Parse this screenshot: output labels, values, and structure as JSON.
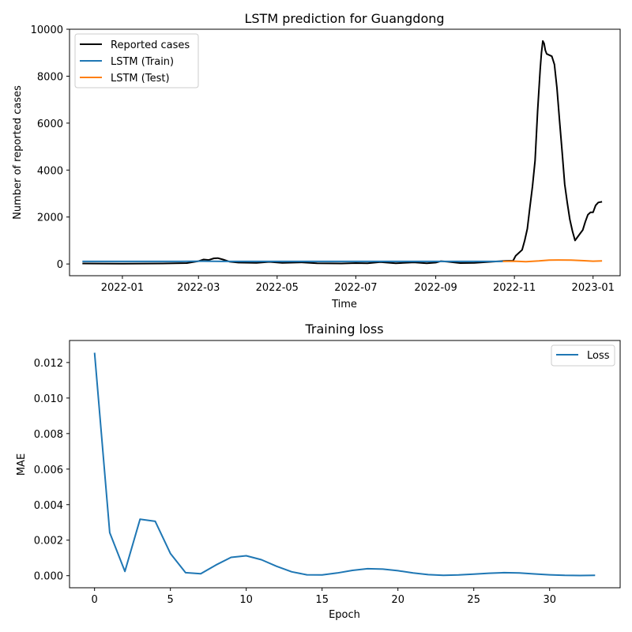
{
  "colors": {
    "reported": "#000000",
    "train": "#1f77b4",
    "test": "#ff7f0e",
    "loss": "#1f77b4"
  },
  "chart_data": [
    {
      "type": "line",
      "title": "LSTM prediction for Guangdong",
      "xlabel": "Time",
      "ylabel": "Number of reported cases",
      "x_range": [
        "2021-11-21",
        "2023-01-22"
      ],
      "ylim": [
        -500,
        10000
      ],
      "x_ticks": [
        "2022-01",
        "2022-03",
        "2022-05",
        "2022-07",
        "2022-09",
        "2022-11",
        "2023-01"
      ],
      "y_ticks": [
        "0",
        "2000",
        "4000",
        "6000",
        "8000",
        "10000"
      ],
      "legend_position": "upper-left",
      "grid": false,
      "series": [
        {
          "name": "Reported cases",
          "color_key": "reported",
          "points": [
            [
              "2021-12-01",
              20
            ],
            [
              "2022-01-01",
              15
            ],
            [
              "2022-02-01",
              20
            ],
            [
              "2022-02-20",
              40
            ],
            [
              "2022-03-01",
              120
            ],
            [
              "2022-03-05",
              190
            ],
            [
              "2022-03-09",
              170
            ],
            [
              "2022-03-13",
              240
            ],
            [
              "2022-03-16",
              250
            ],
            [
              "2022-03-20",
              190
            ],
            [
              "2022-03-25",
              100
            ],
            [
              "2022-04-01",
              60
            ],
            [
              "2022-04-15",
              50
            ],
            [
              "2022-04-25",
              90
            ],
            [
              "2022-05-05",
              50
            ],
            [
              "2022-05-20",
              70
            ],
            [
              "2022-06-01",
              30
            ],
            [
              "2022-06-20",
              20
            ],
            [
              "2022-07-01",
              40
            ],
            [
              "2022-07-10",
              30
            ],
            [
              "2022-07-20",
              80
            ],
            [
              "2022-08-01",
              30
            ],
            [
              "2022-08-15",
              70
            ],
            [
              "2022-08-25",
              30
            ],
            [
              "2022-09-01",
              60
            ],
            [
              "2022-09-05",
              120
            ],
            [
              "2022-09-10",
              100
            ],
            [
              "2022-09-20",
              40
            ],
            [
              "2022-10-01",
              50
            ],
            [
              "2022-10-15",
              100
            ],
            [
              "2022-10-25",
              130
            ],
            [
              "2022-10-31",
              140
            ],
            [
              "2022-11-02",
              350
            ],
            [
              "2022-11-05",
              500
            ],
            [
              "2022-11-07",
              600
            ],
            [
              "2022-11-09",
              1000
            ],
            [
              "2022-11-11",
              1500
            ],
            [
              "2022-11-13",
              2400
            ],
            [
              "2022-11-15",
              3300
            ],
            [
              "2022-11-17",
              4400
            ],
            [
              "2022-11-19",
              6500
            ],
            [
              "2022-11-21",
              8300
            ],
            [
              "2022-11-22",
              9000
            ],
            [
              "2022-11-23",
              9500
            ],
            [
              "2022-11-24",
              9400
            ],
            [
              "2022-11-25",
              9100
            ],
            [
              "2022-11-26",
              8950
            ],
            [
              "2022-11-28",
              8900
            ],
            [
              "2022-11-30",
              8850
            ],
            [
              "2022-12-02",
              8500
            ],
            [
              "2022-12-04",
              7500
            ],
            [
              "2022-12-06",
              6100
            ],
            [
              "2022-12-08",
              4800
            ],
            [
              "2022-12-10",
              3400
            ],
            [
              "2022-12-12",
              2600
            ],
            [
              "2022-12-14",
              1900
            ],
            [
              "2022-12-16",
              1400
            ],
            [
              "2022-12-18",
              1000
            ],
            [
              "2022-12-20",
              1150
            ],
            [
              "2022-12-22",
              1300
            ],
            [
              "2022-12-24",
              1450
            ],
            [
              "2022-12-26",
              1800
            ],
            [
              "2022-12-28",
              2100
            ],
            [
              "2022-12-30",
              2200
            ],
            [
              "2023-01-01",
              2200
            ],
            [
              "2023-01-03",
              2500
            ],
            [
              "2023-01-05",
              2620
            ],
            [
              "2023-01-08",
              2650
            ]
          ]
        },
        {
          "name": "LSTM (Train)",
          "color_key": "train",
          "points": [
            [
              "2021-12-01",
              110
            ],
            [
              "2022-02-15",
              110
            ],
            [
              "2022-03-05",
              120
            ],
            [
              "2022-03-20",
              110
            ],
            [
              "2022-06-01",
              110
            ],
            [
              "2022-09-01",
              110
            ],
            [
              "2022-10-23",
              110
            ]
          ]
        },
        {
          "name": "LSTM (Test)",
          "color_key": "test",
          "points": [
            [
              "2022-10-23",
              110
            ],
            [
              "2022-11-01",
              120
            ],
            [
              "2022-11-10",
              100
            ],
            [
              "2022-11-20",
              130
            ],
            [
              "2022-11-28",
              165
            ],
            [
              "2022-12-05",
              170
            ],
            [
              "2022-12-15",
              165
            ],
            [
              "2022-12-25",
              140
            ],
            [
              "2023-01-01",
              120
            ],
            [
              "2023-01-08",
              130
            ]
          ]
        }
      ]
    },
    {
      "type": "line",
      "title": "Training loss",
      "xlabel": "Epoch",
      "ylabel": "MAE",
      "xlim": [
        -1.65,
        34.65
      ],
      "ylim": [
        -0.00068,
        0.01324
      ],
      "x_ticks": [
        0,
        5,
        10,
        15,
        20,
        25,
        30
      ],
      "y_ticks": [
        0.0,
        0.002,
        0.004,
        0.006,
        0.008,
        0.01,
        0.012
      ],
      "y_tick_labels": [
        "0.000",
        "0.002",
        "0.004",
        "0.006",
        "0.008",
        "0.010",
        "0.012"
      ],
      "legend_position": "upper-right",
      "grid": false,
      "series": [
        {
          "name": "Loss",
          "color_key": "loss",
          "x": [
            0,
            1,
            2,
            3,
            4,
            5,
            6,
            7,
            8,
            9,
            10,
            11,
            12,
            13,
            14,
            15,
            16,
            17,
            18,
            19,
            20,
            21,
            22,
            23,
            24,
            25,
            26,
            27,
            28,
            29,
            30,
            31,
            32,
            33
          ],
          "values": [
            0.01255,
            0.00242,
            0.00024,
            0.00318,
            0.00306,
            0.00125,
            0.00017,
            0.00011,
            0.0006,
            0.00103,
            0.00112,
            0.0009,
            0.00053,
            0.00022,
            5e-05,
            4e-05,
            0.00015,
            0.0003,
            0.00039,
            0.00037,
            0.00028,
            0.00015,
            6e-05,
            2e-05,
            4e-05,
            9e-05,
            0.00014,
            0.00017,
            0.00015,
            0.0001,
            5e-05,
            2e-05,
            1e-05,
            2e-05
          ]
        }
      ]
    }
  ]
}
